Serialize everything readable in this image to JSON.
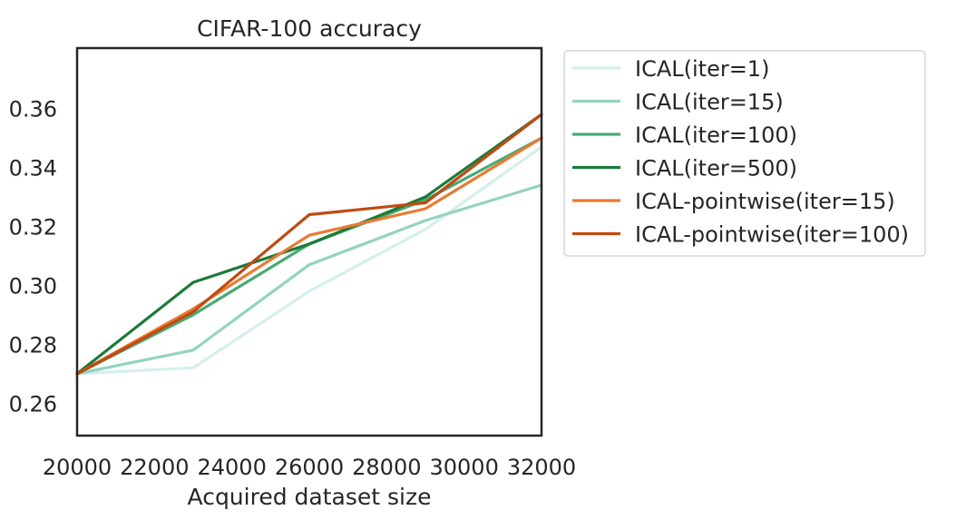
{
  "chart_data": {
    "type": "line",
    "title": "CIFAR-100 accuracy",
    "xlabel": "Acquired dataset size",
    "ylabel": "",
    "xlim": [
      20000,
      32000
    ],
    "ylim": [
      0.249,
      0.3805
    ],
    "x_ticks": [
      20000,
      22000,
      24000,
      26000,
      28000,
      30000,
      32000
    ],
    "x_tick_labels": [
      "20000",
      "22000",
      "24000",
      "26000",
      "28000",
      "30000",
      "32000"
    ],
    "y_ticks": [
      0.26,
      0.28,
      0.3,
      0.32,
      0.34,
      0.36
    ],
    "y_tick_labels": [
      "0.26",
      "0.28",
      "0.30",
      "0.32",
      "0.34",
      "0.36"
    ],
    "grid": false,
    "legend_position": "outside-right",
    "x": [
      20000,
      23000,
      26000,
      29000,
      32000
    ],
    "series": [
      {
        "name": "ICAL(iter=1)",
        "color": "#d5efec",
        "values": [
          0.27,
          0.272,
          0.298,
          0.319,
          0.347
        ]
      },
      {
        "name": "ICAL(iter=15)",
        "color": "#93d4bf",
        "values": [
          0.27,
          0.278,
          0.307,
          0.322,
          0.334
        ]
      },
      {
        "name": "ICAL(iter=100)",
        "color": "#4aaa72",
        "values": [
          0.27,
          0.29,
          0.314,
          0.329,
          0.35
        ]
      },
      {
        "name": "ICAL(iter=500)",
        "color": "#1b7a3a",
        "values": [
          0.27,
          0.301,
          0.314,
          0.33,
          0.358
        ]
      },
      {
        "name": "ICAL-pointwise(iter=15)",
        "color": "#ea7a33",
        "values": [
          0.27,
          0.292,
          0.317,
          0.326,
          0.35
        ]
      },
      {
        "name": "ICAL-pointwise(iter=100)",
        "color": "#c04a10",
        "values": [
          0.27,
          0.291,
          0.324,
          0.328,
          0.358
        ]
      }
    ]
  }
}
